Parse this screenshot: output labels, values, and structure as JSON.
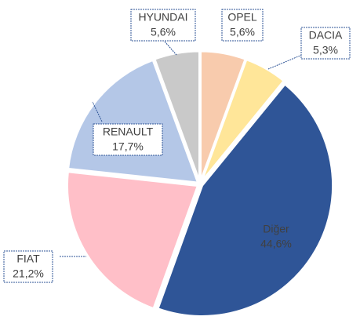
{
  "chart_data": {
    "type": "pie",
    "categories": [
      "OPEL",
      "DACIA",
      "Diğer",
      "FIAT",
      "RENAULT",
      "HYUNDAI"
    ],
    "values": [
      5.6,
      5.3,
      44.6,
      21.2,
      17.7,
      5.6
    ],
    "value_labels": [
      "5,6%",
      "5,3%",
      "44,6%",
      "21,2%",
      "17,7%",
      "5,6%"
    ],
    "colors": [
      "#f8cbad",
      "#ffe699",
      "#2f5597",
      "#ffbfc8",
      "#b4c7e7",
      "#c9c9c9"
    ]
  }
}
